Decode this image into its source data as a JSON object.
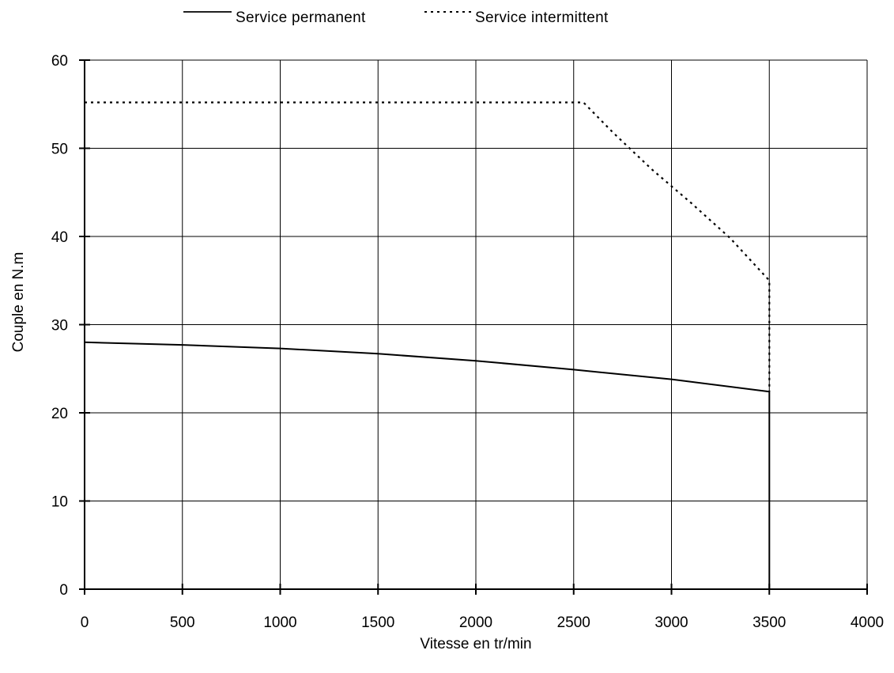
{
  "chart_data": {
    "type": "line",
    "xlabel": "Vitesse en tr/min",
    "ylabel": "Couple en N.m",
    "xlim": [
      0,
      4000
    ],
    "ylim": [
      0,
      60
    ],
    "xticks": [
      0,
      500,
      1000,
      1500,
      2000,
      2500,
      3000,
      3500,
      4000
    ],
    "yticks": [
      0,
      10,
      20,
      30,
      40,
      50,
      60
    ],
    "grid": true,
    "legend_position": "top",
    "series": [
      {
        "name": "Service permanent",
        "style": "solid",
        "color": "#000000",
        "x": [
          0,
          500,
          1000,
          1500,
          2000,
          2500,
          3000,
          3500,
          3500
        ],
        "y": [
          28.0,
          27.7,
          27.3,
          26.7,
          25.9,
          24.9,
          23.8,
          22.4,
          0
        ]
      },
      {
        "name": "Service intermittent",
        "style": "dotted",
        "color": "#000000",
        "x": [
          0,
          2500,
          2550,
          2700,
          2900,
          3100,
          3300,
          3500,
          3500
        ],
        "y": [
          55.2,
          55.2,
          55.2,
          51.8,
          47.6,
          43.8,
          39.8,
          35.0,
          22.4
        ]
      }
    ]
  }
}
